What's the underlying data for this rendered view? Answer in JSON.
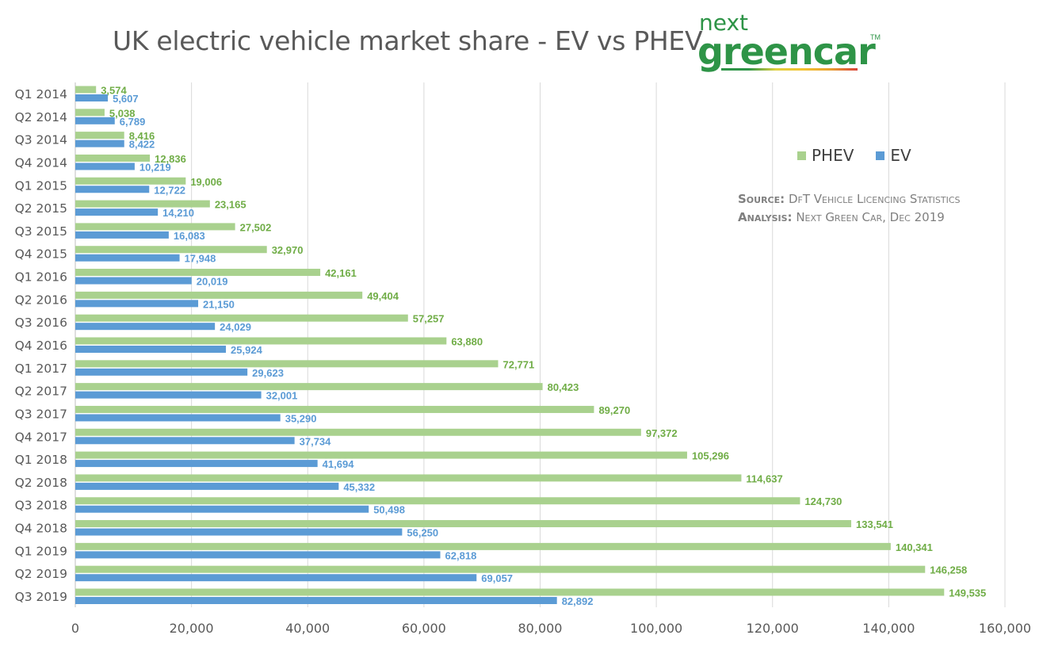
{
  "chart_data": {
    "type": "bar",
    "orientation": "horizontal",
    "title": "UK electric vehicle market share - EV vs PHEV",
    "categories": [
      "Q1 2014",
      "Q2 2014",
      "Q3 2014",
      "Q4 2014",
      "Q1 2015",
      "Q2 2015",
      "Q3 2015",
      "Q4 2015",
      "Q1 2016",
      "Q2 2016",
      "Q3 2016",
      "Q4 2016",
      "Q1 2017",
      "Q2 2017",
      "Q3 2017",
      "Q4 2017",
      "Q1 2018",
      "Q2 2018",
      "Q3 2018",
      "Q4 2018",
      "Q1 2019",
      "Q2 2019",
      "Q3 2019"
    ],
    "series": [
      {
        "name": "PHEV",
        "color": "#a9d18e",
        "label_color": "#70ad47",
        "values": [
          3574,
          5038,
          8416,
          12836,
          19006,
          23165,
          27502,
          32970,
          42161,
          49404,
          57257,
          63880,
          72771,
          80423,
          89270,
          97372,
          105296,
          114637,
          124730,
          133541,
          140341,
          146258,
          149535
        ],
        "labels": [
          "3,574",
          "5,038",
          "8,416",
          "12,836",
          "19,006",
          "23,165",
          "27,502",
          "32,970",
          "42,161",
          "49,404",
          "57,257",
          "63,880",
          "72,771",
          "80,423",
          "89,270",
          "97,372",
          "105,296",
          "114,637",
          "124,730",
          "133,541",
          "140,341",
          "146,258",
          "149,535"
        ]
      },
      {
        "name": "EV",
        "color": "#5b9bd5",
        "label_color": "#5b9bd5",
        "values": [
          5607,
          6789,
          8422,
          10219,
          12722,
          14210,
          16083,
          17948,
          20019,
          21150,
          24029,
          25924,
          29623,
          32001,
          35290,
          37734,
          41694,
          45332,
          50498,
          56250,
          62818,
          69057,
          82892
        ],
        "labels": [
          "5,607",
          "6,789",
          "8,422",
          "10,219",
          "12,722",
          "14,210",
          "16,083",
          "17,948",
          "20,019",
          "21,150",
          "24,029",
          "25,924",
          "29,623",
          "32,001",
          "35,290",
          "37,734",
          "41,694",
          "45,332",
          "50,498",
          "56,250",
          "62,818",
          "69,057",
          "82,892"
        ]
      }
    ],
    "xlim": [
      0,
      160000
    ],
    "xticks": [
      "0",
      "20,000",
      "40,000",
      "60,000",
      "80,000",
      "100,000",
      "120,000",
      "140,000",
      "160,000"
    ],
    "xtick_values": [
      0,
      20000,
      40000,
      60000,
      80000,
      100000,
      120000,
      140000,
      160000
    ],
    "grid": true,
    "legend_position": "top-right"
  },
  "source": {
    "label": "Source:",
    "text": "DfT Vehicle Licencing Statistics"
  },
  "analysis": {
    "label": "Analysis:",
    "text": "Next Green Car, Dec 2019"
  },
  "logo": {
    "line1": "next",
    "line2": "greencar",
    "tm": "TM"
  }
}
